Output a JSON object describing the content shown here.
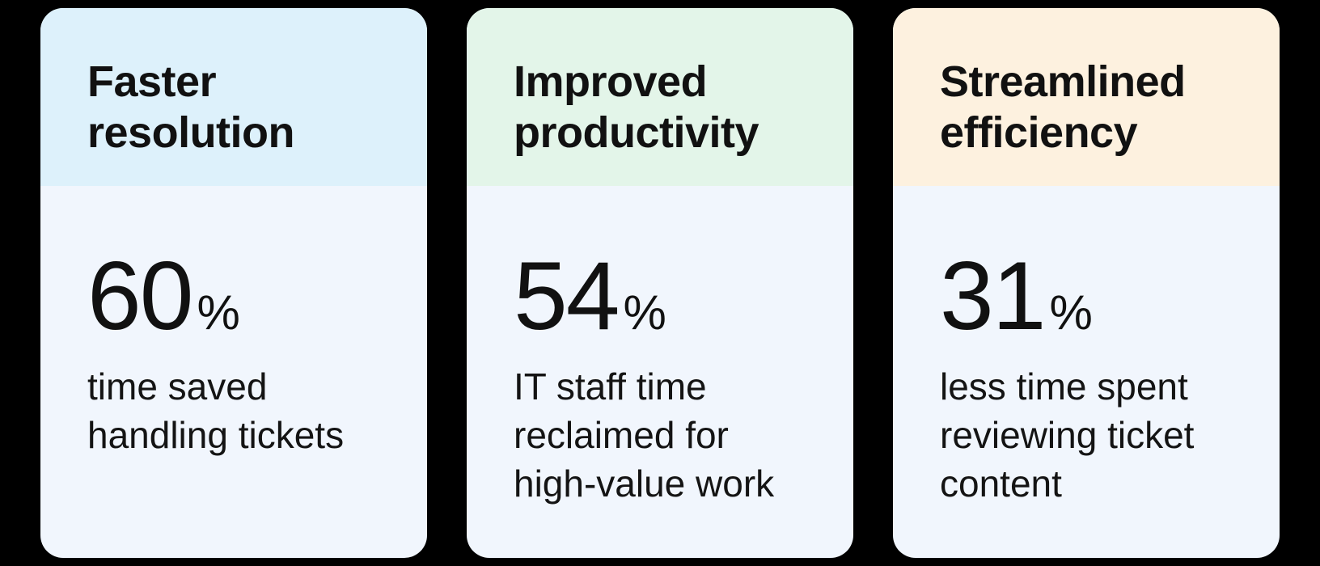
{
  "cards": [
    {
      "title_line1": "Faster",
      "title_line2": "resolution",
      "value": "60",
      "unit": "%",
      "desc_line1": "time saved",
      "desc_line2": "handling tickets",
      "desc_line3": "",
      "header_color": "#ddf1fb"
    },
    {
      "title_line1": "Improved",
      "title_line2": "productivity",
      "value": "54",
      "unit": "%",
      "desc_line1": "IT staff time",
      "desc_line2": "reclaimed for",
      "desc_line3": "high-value work",
      "header_color": "#e3f5e9"
    },
    {
      "title_line1": "Streamlined",
      "title_line2": "efficiency",
      "value": "31",
      "unit": "%",
      "desc_line1": "less time spent",
      "desc_line2": "reviewing ticket",
      "desc_line3": "content",
      "header_color": "#fdf1df"
    }
  ],
  "card_body_color": "#f1f6fd",
  "page_background": "#000000"
}
